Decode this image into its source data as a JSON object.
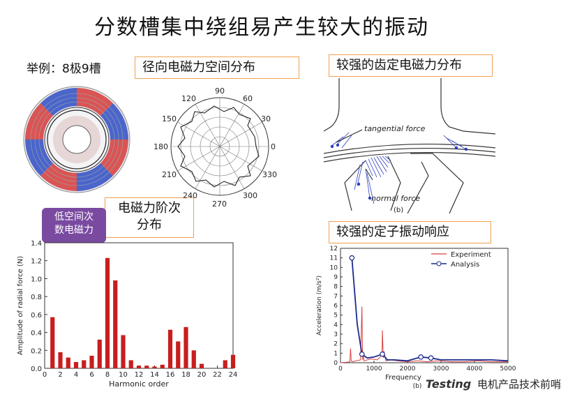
{
  "title": "分数槽集中绕组易产生较大的振动",
  "example_label": "举例：8极9槽",
  "boxes": {
    "radial": "径向电磁力空间分布",
    "tooth": "较强的齿定电磁力分布",
    "order_line1": "电磁力阶次",
    "order_line2": "分布",
    "response": "较强的定子振动响应"
  },
  "callout": {
    "line1": "低空间次",
    "line2": "数电磁力"
  },
  "polar": {
    "angles": [
      "90",
      "60",
      "30",
      "0",
      "330",
      "300",
      "270",
      "240",
      "210",
      "180",
      "150",
      "120"
    ]
  },
  "tooth_labels": {
    "tangential": "tangential force",
    "normal": "normal force",
    "fig": "(b)"
  },
  "chart_data": [
    {
      "type": "bar",
      "title": "",
      "xlabel": "Harmonic order",
      "ylabel": "Amplitude of radial force (N)",
      "ylim": [
        0,
        1.4
      ],
      "xlim": [
        0,
        24
      ],
      "yticks": [
        "0.0",
        "0.2",
        "0.4",
        "0.6",
        "0.8",
        "1.0",
        "1.2",
        "1.4"
      ],
      "xticks": [
        "0",
        "2",
        "4",
        "6",
        "8",
        "10",
        "12",
        "14",
        "16",
        "18",
        "20",
        "22",
        "24"
      ],
      "x": [
        1,
        2,
        3,
        4,
        5,
        6,
        7,
        8,
        9,
        10,
        11,
        12,
        13,
        14,
        15,
        16,
        17,
        18,
        19,
        20,
        21,
        22,
        23,
        24
      ],
      "values": [
        0.57,
        0.18,
        0.12,
        0.07,
        0.09,
        0.14,
        0.32,
        1.23,
        0.98,
        0.37,
        0.09,
        0.03,
        0.03,
        0.02,
        0.04,
        0.43,
        0.3,
        0.46,
        0.2,
        0.05,
        0.0,
        0.0,
        0.09,
        0.15
      ],
      "color": "#c81e1e"
    },
    {
      "type": "line",
      "title": "",
      "xlabel": "Frequency",
      "ylabel": "Acceleration (m/s²)",
      "ylim": [
        0,
        12
      ],
      "xlim": [
        0,
        5000
      ],
      "yticks": [
        "0",
        "1",
        "2",
        "3",
        "4",
        "5",
        "6",
        "7",
        "8",
        "9",
        "10",
        "11",
        "12"
      ],
      "xticks": [
        "0",
        "1000",
        "2000",
        "3000",
        "4000",
        "5000"
      ],
      "fig_label": "(b)",
      "series": [
        {
          "name": "Experiment",
          "color": "#d94040",
          "x": [
            0,
            200,
            280,
            300,
            320,
            350,
            600,
            640,
            660,
            680,
            700,
            900,
            1100,
            1240,
            1250,
            1280,
            1300,
            1350,
            1500,
            1700,
            2000,
            2300,
            2600,
            2900,
            3300,
            3700,
            4100,
            4500,
            5000
          ],
          "y": [
            0,
            0.05,
            0.1,
            1.5,
            0.2,
            0.1,
            0.3,
            5.9,
            0.3,
            1.0,
            0.2,
            0.4,
            0.3,
            0.8,
            3.4,
            0.5,
            1.2,
            0.2,
            0.3,
            0.2,
            0.1,
            0.2,
            0.1,
            0.2,
            0.1,
            0.1,
            0.2,
            0.1,
            0.1
          ]
        },
        {
          "name": "Analysis",
          "color": "#1b2a8c",
          "x": [
            340,
            500,
            640,
            800,
            1000,
            1250,
            1400,
            1600,
            2000,
            2400,
            2700,
            3000,
            3500,
            4000,
            4500,
            5000
          ],
          "y": [
            11,
            4.0,
            0.9,
            0.5,
            0.6,
            0.9,
            0.3,
            0.3,
            0.2,
            0.6,
            0.5,
            0.3,
            0.3,
            0.3,
            0.3,
            0.2
          ]
        }
      ]
    }
  ],
  "watermark": {
    "brand": "Testing",
    "sub": "电机产品技术前哨"
  }
}
